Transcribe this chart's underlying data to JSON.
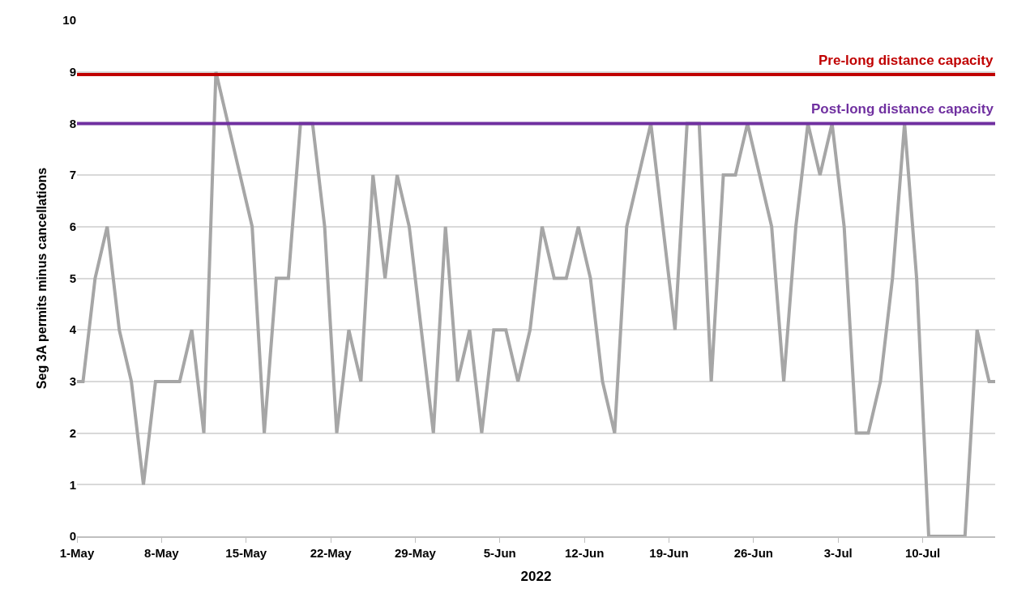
{
  "chart_data": {
    "type": "line",
    "xlabel": "2022",
    "ylabel": "Seg 3A permits minus cancellations",
    "x": [
      "2022-05-01T00:00",
      "2022-05-01T12:00",
      "2022-05-02T12:00",
      "2022-05-03T12:00",
      "2022-05-04T12:00",
      "2022-05-05T12:00",
      "2022-05-06T12:00",
      "2022-05-07T12:00",
      "2022-05-08T12:00",
      "2022-05-09T12:00",
      "2022-05-10T12:00",
      "2022-05-11T12:00",
      "2022-05-12T12:00",
      "2022-05-13T12:00",
      "2022-05-14T12:00",
      "2022-05-15T12:00",
      "2022-05-16T12:00",
      "2022-05-17T12:00",
      "2022-05-18T12:00",
      "2022-05-19T12:00",
      "2022-05-20T12:00",
      "2022-05-21T12:00",
      "2022-05-22T12:00",
      "2022-05-23T12:00",
      "2022-05-24T12:00",
      "2022-05-25T12:00",
      "2022-05-26T12:00",
      "2022-05-27T12:00",
      "2022-05-28T12:00",
      "2022-05-29T12:00",
      "2022-05-30T12:00",
      "2022-05-31T12:00",
      "2022-06-01T12:00",
      "2022-06-02T12:00",
      "2022-06-03T12:00",
      "2022-06-04T12:00",
      "2022-06-05T12:00",
      "2022-06-06T12:00",
      "2022-06-07T12:00",
      "2022-06-08T12:00",
      "2022-06-09T12:00",
      "2022-06-10T12:00",
      "2022-06-11T12:00",
      "2022-06-12T12:00",
      "2022-06-13T12:00",
      "2022-06-14T12:00",
      "2022-06-15T12:00",
      "2022-06-16T12:00",
      "2022-06-17T12:00",
      "2022-06-18T12:00",
      "2022-06-19T12:00",
      "2022-06-20T12:00",
      "2022-06-21T12:00",
      "2022-06-22T12:00",
      "2022-06-23T12:00",
      "2022-06-24T12:00",
      "2022-06-25T12:00",
      "2022-06-26T12:00",
      "2022-06-27T12:00",
      "2022-06-28T12:00",
      "2022-06-29T12:00",
      "2022-06-30T12:00",
      "2022-07-01T12:00",
      "2022-07-02T12:00",
      "2022-07-03T12:00",
      "2022-07-04T12:00",
      "2022-07-05T12:00",
      "2022-07-06T12:00",
      "2022-07-07T12:00",
      "2022-07-08T12:00",
      "2022-07-09T12:00",
      "2022-07-10T12:00",
      "2022-07-11T12:00",
      "2022-07-12T12:00",
      "2022-07-13T12:00",
      "2022-07-14T12:00",
      "2022-07-15T12:00",
      "2022-07-16T00:00"
    ],
    "series": [
      {
        "color": "#a6a6a6",
        "values": [
          3,
          3,
          5,
          6,
          4,
          3,
          1,
          3,
          3,
          3,
          4,
          2,
          9,
          8,
          7,
          6,
          2,
          5,
          5,
          8,
          8,
          6,
          2,
          4,
          3,
          7,
          5,
          7,
          6,
          4,
          2,
          6,
          3,
          4,
          2,
          4,
          4,
          3,
          4,
          6,
          5,
          5,
          6,
          5,
          3,
          2,
          6,
          7,
          8,
          6,
          4,
          8,
          8,
          3,
          7,
          7,
          8,
          7,
          6,
          3,
          6,
          8,
          7,
          8,
          6,
          2,
          2,
          3,
          5,
          8,
          5,
          0,
          0,
          0,
          0,
          4,
          3,
          3
        ]
      }
    ],
    "ref_lines": [
      {
        "axis": "y",
        "value": 8.95,
        "label": "Pre-long distance capacity",
        "color": "#c00000"
      },
      {
        "axis": "y",
        "value": 8,
        "label": "Post-long distance capacity",
        "color": "#7030a0"
      }
    ],
    "xlim": [
      "2022-05-01T00:00",
      "2022-07-16T00:00"
    ],
    "xticks": [
      {
        "value": "2022-05-01",
        "label": "1-May"
      },
      {
        "value": "2022-05-08",
        "label": "8-May"
      },
      {
        "value": "2022-05-15",
        "label": "15-May"
      },
      {
        "value": "2022-05-22",
        "label": "22-May"
      },
      {
        "value": "2022-05-29",
        "label": "29-May"
      },
      {
        "value": "2022-06-05",
        "label": "5-Jun"
      },
      {
        "value": "2022-06-12",
        "label": "12-Jun"
      },
      {
        "value": "2022-06-19",
        "label": "19-Jun"
      },
      {
        "value": "2022-06-26",
        "label": "26-Jun"
      },
      {
        "value": "2022-07-03",
        "label": "3-Jul"
      },
      {
        "value": "2022-07-10",
        "label": "10-Jul"
      }
    ],
    "ylim": [
      0,
      10
    ],
    "yticks": [
      0,
      1,
      2,
      3,
      4,
      5,
      6,
      7,
      8,
      9,
      10
    ],
    "grid": "y",
    "marker": "none",
    "line_style": "solid"
  }
}
